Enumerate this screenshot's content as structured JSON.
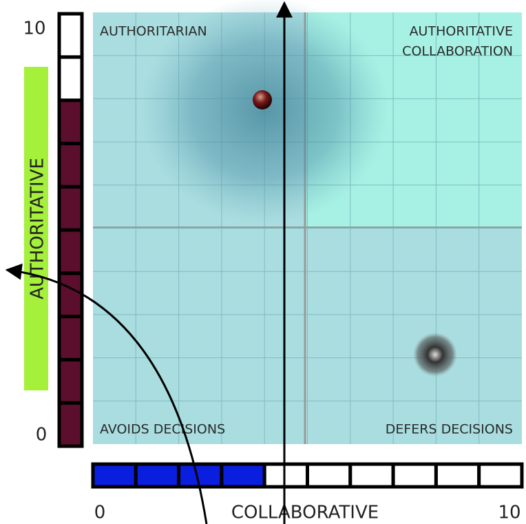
{
  "y_axis": {
    "label": "AUTHORITATIVE",
    "min": 0,
    "max": 10,
    "score": 8
  },
  "x_axis": {
    "label": "COLLABORATIVE",
    "min": 0,
    "max": 10,
    "score": 4
  },
  "quadrants": {
    "top_left": "AUTHORITARIAN",
    "top_right": [
      "AUTHORITATIVE",
      "COLLABORATION"
    ],
    "bottom_left": "AVOIDS DECISIONS",
    "bottom_right": "DEFERS DECISIONS"
  }
}
